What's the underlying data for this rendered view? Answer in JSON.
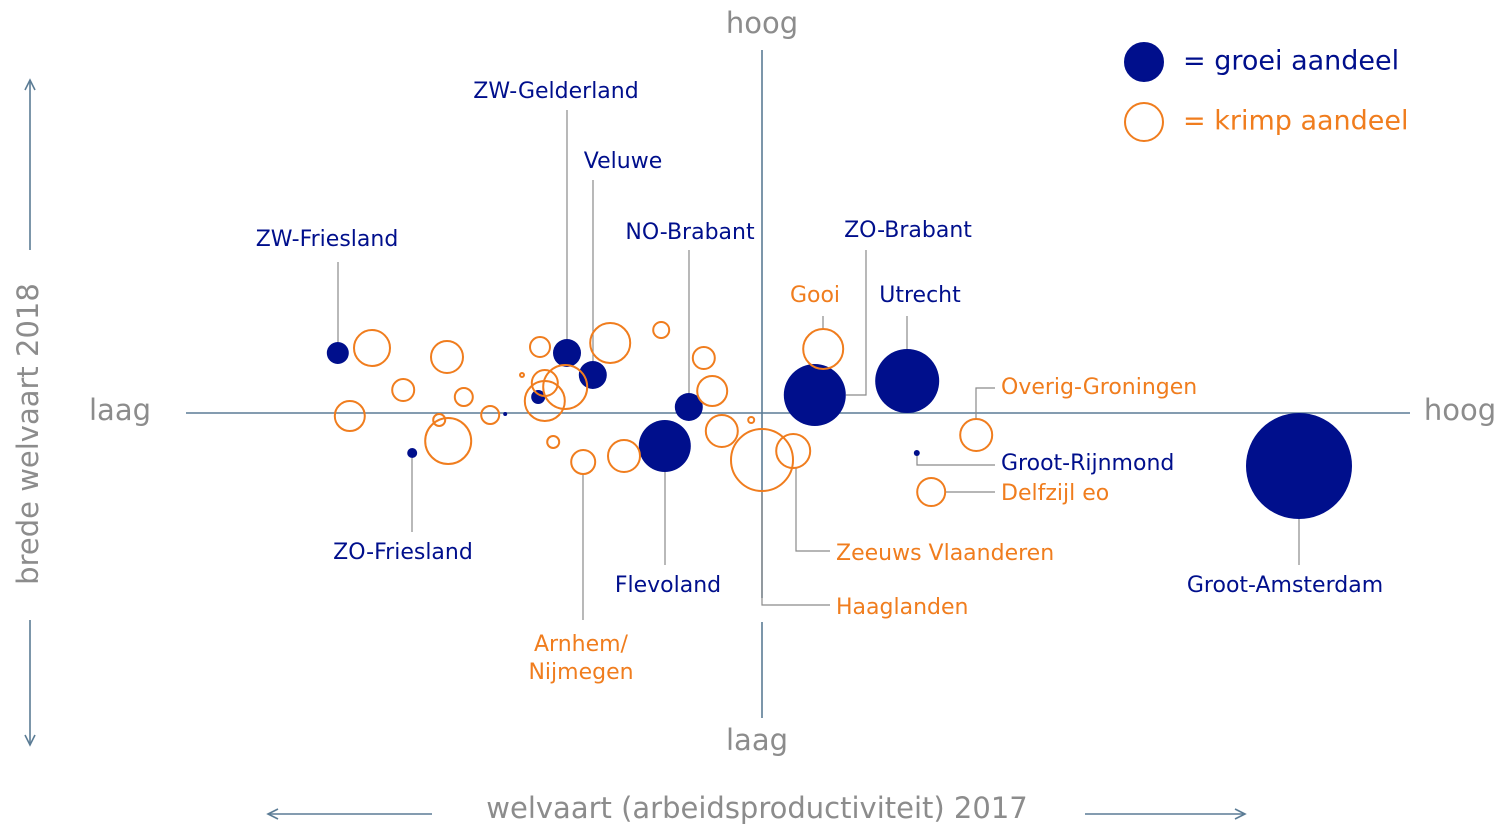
{
  "chart_data": {
    "type": "bubble",
    "xlabel": "welvaart (arbeidsproductiviteit) 2017",
    "ylabel": "brede welvaart 2018",
    "x_low": "laag",
    "x_high": "hoog",
    "y_low": "laag",
    "y_high": "hoog",
    "xlim": [
      -96,
      108
    ],
    "ylim": [
      -77,
      91
    ],
    "series": [
      {
        "name": "= groei aandeel",
        "color": "#000f8c",
        "filled": true,
        "x": [
          -70.7,
          -58.3,
          -42.8,
          -37.3,
          -32.5,
          -28.2,
          -12.2,
          -16.2,
          8.8,
          24.2,
          25.8,
          89.5
        ],
        "values": [
          15,
          -10,
          -0.25,
          4,
          15,
          9.5,
          1.5,
          -8.25,
          4.5,
          8,
          -10,
          -13.25
        ],
        "sizes": [
          11,
          5,
          2,
          7,
          14,
          14,
          14,
          26,
          31,
          32,
          3,
          53
        ],
        "labels": [
          "ZW-Friesland",
          "ZO-Friesland",
          null,
          null,
          "ZW-Gelderland",
          "Veluwe",
          "NO-Brabant",
          "Flevoland",
          "ZO-Brabant",
          "Utrecht",
          "Groot-Rijnmond",
          "Groot-Amsterdam"
        ]
      },
      {
        "name": "= krimp aandeel",
        "color": "#f07d1e",
        "filled": false,
        "x": [
          -65,
          -52.5,
          -59.8,
          -49.7,
          -68.7,
          -53.8,
          -52.3,
          -45.3,
          -40,
          -37,
          -36.2,
          -32.8,
          -36.2,
          -34.8,
          -25.3,
          -16.8,
          -9.7,
          -8.3,
          -29.8,
          -23,
          -6.7,
          -1.8,
          10.2,
          0,
          5.2,
          35.7,
          28.2
        ],
        "values": [
          16.25,
          14,
          5.75,
          4,
          -0.75,
          -1.75,
          -7,
          -0.5,
          9.5,
          16.5,
          7.5,
          6.5,
          3,
          -7.25,
          17.5,
          20.75,
          13.75,
          5.5,
          -12.25,
          -10.75,
          -4.5,
          -1.75,
          16,
          -11.75,
          -9.5,
          -5.5,
          -19.75
        ],
        "sizes": [
          18,
          16,
          11,
          9,
          15,
          6,
          23,
          9,
          2,
          10,
          13,
          22,
          20,
          6,
          20,
          8,
          11,
          15,
          12,
          16,
          16,
          3,
          20,
          31,
          17,
          16,
          14
        ],
        "labels": [
          null,
          null,
          null,
          null,
          null,
          null,
          null,
          null,
          null,
          null,
          null,
          null,
          null,
          null,
          null,
          null,
          null,
          null,
          [
            "Arnhem/",
            "Nijmegen"
          ],
          null,
          null,
          null,
          "Gooi",
          "Haaglanden",
          "Zeeuws Vlaanderen",
          "Overig-Groningen",
          "Delfzijl eo"
        ]
      }
    ]
  }
}
